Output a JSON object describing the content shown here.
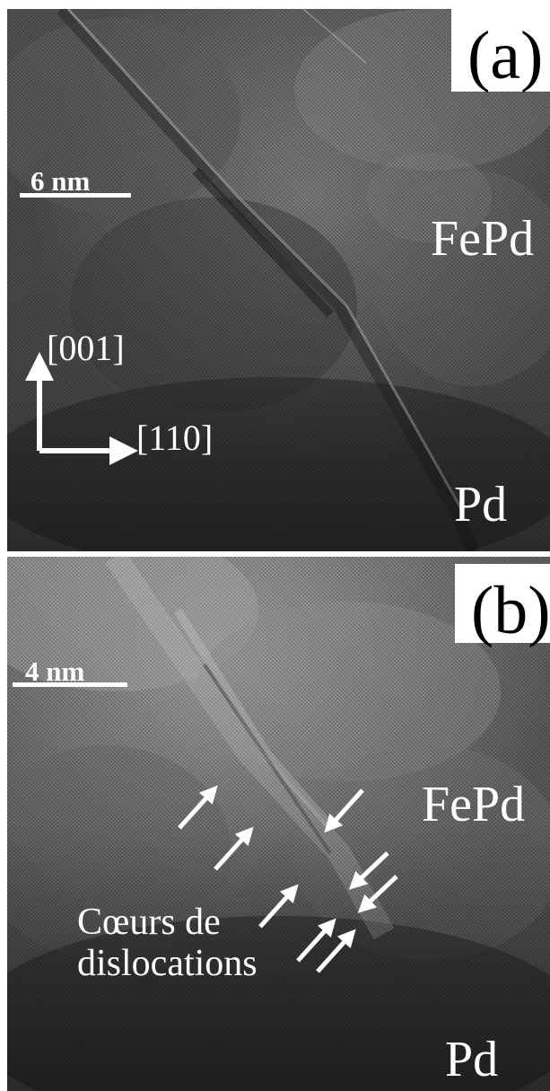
{
  "panel_a": {
    "label": "(a)",
    "scale_text": "6 nm",
    "phase_top": "FePd",
    "phase_bottom": "Pd",
    "axis_vertical": "[001]",
    "axis_horizontal": "[110]"
  },
  "panel_b": {
    "label": "(b)",
    "scale_text": "4 nm",
    "phase_top": "FePd",
    "phase_bottom": "Pd",
    "annotation_line1": "Cœurs de",
    "annotation_line2": "dislocations"
  },
  "colors": {
    "annotation": "#ffffff",
    "label_box": "#ffffff",
    "label_text": "#000000"
  }
}
